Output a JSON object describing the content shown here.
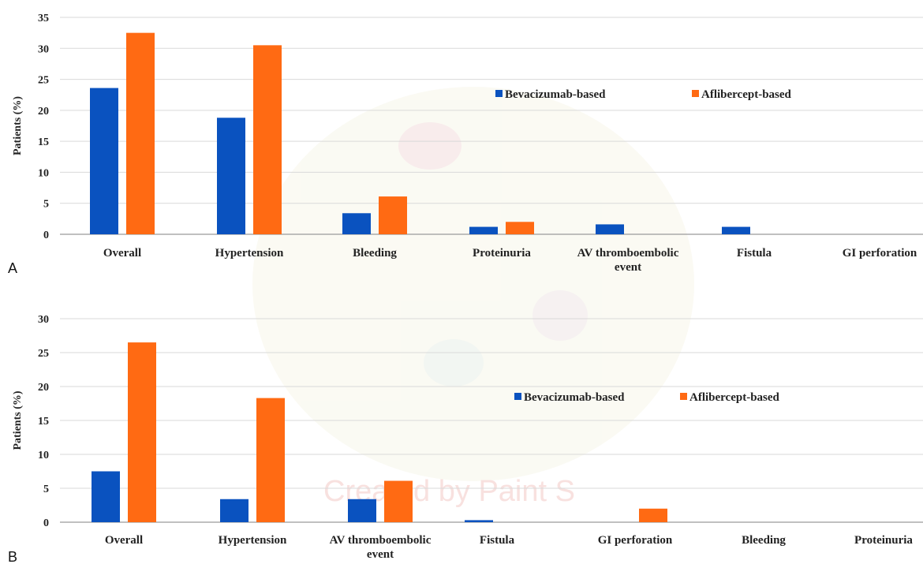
{
  "colors": {
    "bevacizumab": "#0a52bf",
    "aflibercept": "#ff6a13",
    "grid": "#d9d9d9",
    "axis": "#9a9a9a"
  },
  "watermark": {
    "text": "Created by Paint S"
  },
  "chart_data": [
    {
      "type": "bar",
      "panel_label": "A",
      "ylabel": "Patients (%)",
      "ylim": [
        0,
        35
      ],
      "yticks": [
        0,
        5,
        10,
        15,
        20,
        25,
        30,
        35
      ],
      "grid": true,
      "legend_position": "top-right",
      "categories": [
        [
          "Overall"
        ],
        [
          "Hypertension"
        ],
        [
          "Bleeding"
        ],
        [
          "Proteinuria"
        ],
        [
          "AV thromboembolic",
          "event"
        ],
        [
          "Fistula"
        ],
        [
          "GI perforation"
        ]
      ],
      "series": [
        {
          "name": "Bevacizumab-based",
          "color_key": "bevacizumab",
          "values": [
            23.6,
            18.8,
            3.4,
            1.2,
            1.6,
            1.2,
            0
          ]
        },
        {
          "name": "Aflibercept-based",
          "color_key": "aflibercept",
          "values": [
            32.5,
            30.5,
            6.1,
            2.0,
            0,
            0,
            0
          ]
        }
      ]
    },
    {
      "type": "bar",
      "panel_label": "B",
      "ylabel": "Patients (%)",
      "ylim": [
        0,
        30
      ],
      "yticks": [
        0,
        5,
        10,
        15,
        20,
        25,
        30
      ],
      "grid": true,
      "legend_position": "top-right",
      "categories": [
        [
          "Overall"
        ],
        [
          "Hypertension"
        ],
        [
          "AV thromboembolic",
          "event"
        ],
        [
          "Fistula"
        ],
        [
          "GI perforation"
        ],
        [
          "Bleeding"
        ],
        [
          "Proteinuria"
        ]
      ],
      "series": [
        {
          "name": "Bevacizumab-based",
          "color_key": "bevacizumab",
          "values": [
            7.5,
            3.4,
            3.4,
            0.3,
            0,
            0,
            0
          ]
        },
        {
          "name": "Aflibercept-based",
          "color_key": "aflibercept",
          "values": [
            26.5,
            18.3,
            6.1,
            0,
            2.0,
            0,
            0
          ]
        }
      ]
    }
  ]
}
